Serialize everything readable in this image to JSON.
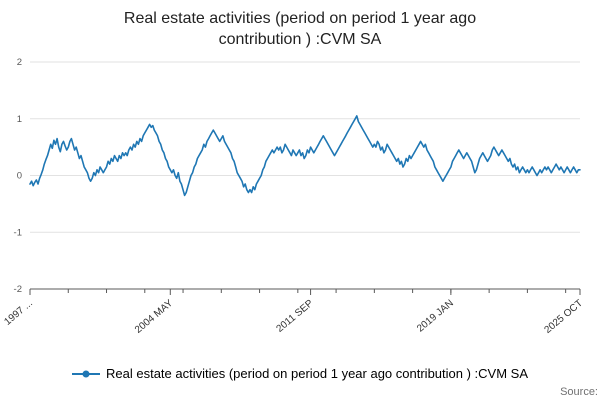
{
  "source": {
    "label": "Source:"
  },
  "legend": {
    "label": "Real estate activities (period on period 1 year ago contribution ) :CVM SA"
  },
  "chart_data": {
    "type": "line",
    "title": "Real estate activities (period on period 1 year ago contribution ) :CVM SA",
    "xlabel": "",
    "ylabel": "",
    "ylim": [
      -2,
      2
    ],
    "y_ticks": [
      -2,
      -1,
      0,
      1,
      2
    ],
    "grid": true,
    "legend_position": "bottom",
    "x_start": "1997 JAN",
    "x_end": "2025 OCT",
    "x_tick_labels": [
      {
        "index": 0,
        "label": "1997 ..."
      },
      {
        "index": 88,
        "label": "2004 MAY"
      },
      {
        "index": 176,
        "label": "2011 SEP"
      },
      {
        "index": 264,
        "label": "2019 JAN"
      },
      {
        "index": 345,
        "label": "2025 OCT"
      }
    ],
    "series": [
      {
        "name": "Real estate activities (period on period 1 year ago contribution ) :CVM SA",
        "color": "#1f77b4",
        "values": [
          -0.15,
          -0.1,
          -0.18,
          -0.12,
          -0.08,
          -0.15,
          -0.05,
          0.02,
          0.1,
          0.2,
          0.28,
          0.35,
          0.45,
          0.55,
          0.48,
          0.62,
          0.55,
          0.65,
          0.5,
          0.42,
          0.55,
          0.6,
          0.52,
          0.45,
          0.5,
          0.6,
          0.65,
          0.55,
          0.45,
          0.5,
          0.4,
          0.3,
          0.35,
          0.25,
          0.15,
          0.1,
          0.05,
          -0.05,
          -0.1,
          -0.05,
          0.05,
          0.0,
          0.1,
          0.05,
          0.15,
          0.1,
          0.05,
          0.1,
          0.15,
          0.25,
          0.2,
          0.3,
          0.25,
          0.35,
          0.3,
          0.25,
          0.35,
          0.3,
          0.4,
          0.35,
          0.4,
          0.35,
          0.45,
          0.5,
          0.45,
          0.55,
          0.5,
          0.6,
          0.55,
          0.65,
          0.6,
          0.7,
          0.75,
          0.8,
          0.85,
          0.9,
          0.85,
          0.88,
          0.8,
          0.75,
          0.7,
          0.6,
          0.55,
          0.45,
          0.4,
          0.3,
          0.25,
          0.15,
          0.1,
          0.05,
          0.1,
          0.0,
          -0.05,
          0.05,
          -0.1,
          -0.15,
          -0.25,
          -0.35,
          -0.3,
          -0.2,
          -0.1,
          0.0,
          0.05,
          0.15,
          0.2,
          0.3,
          0.35,
          0.4,
          0.45,
          0.55,
          0.5,
          0.6,
          0.65,
          0.7,
          0.75,
          0.8,
          0.75,
          0.7,
          0.65,
          0.6,
          0.65,
          0.7,
          0.6,
          0.55,
          0.5,
          0.45,
          0.4,
          0.3,
          0.25,
          0.15,
          0.05,
          0.0,
          -0.05,
          -0.1,
          -0.2,
          -0.15,
          -0.25,
          -0.3,
          -0.25,
          -0.3,
          -0.2,
          -0.25,
          -0.15,
          -0.1,
          -0.05,
          0.0,
          0.1,
          0.15,
          0.25,
          0.3,
          0.35,
          0.4,
          0.45,
          0.4,
          0.45,
          0.5,
          0.45,
          0.5,
          0.4,
          0.45,
          0.55,
          0.5,
          0.45,
          0.4,
          0.35,
          0.45,
          0.4,
          0.35,
          0.4,
          0.45,
          0.35,
          0.4,
          0.3,
          0.35,
          0.45,
          0.4,
          0.5,
          0.45,
          0.4,
          0.45,
          0.5,
          0.55,
          0.6,
          0.65,
          0.7,
          0.65,
          0.6,
          0.55,
          0.5,
          0.45,
          0.4,
          0.35,
          0.4,
          0.45,
          0.5,
          0.55,
          0.6,
          0.65,
          0.7,
          0.75,
          0.8,
          0.85,
          0.9,
          0.95,
          1.0,
          1.05,
          0.95,
          0.9,
          0.85,
          0.8,
          0.75,
          0.7,
          0.65,
          0.6,
          0.55,
          0.5,
          0.55,
          0.5,
          0.6,
          0.55,
          0.45,
          0.5,
          0.4,
          0.45,
          0.55,
          0.5,
          0.45,
          0.4,
          0.35,
          0.3,
          0.25,
          0.3,
          0.2,
          0.25,
          0.15,
          0.2,
          0.3,
          0.25,
          0.35,
          0.3,
          0.35,
          0.4,
          0.45,
          0.5,
          0.55,
          0.6,
          0.55,
          0.5,
          0.55,
          0.45,
          0.4,
          0.35,
          0.3,
          0.25,
          0.15,
          0.1,
          0.05,
          0.0,
          -0.05,
          -0.1,
          -0.05,
          0.0,
          0.05,
          0.1,
          0.15,
          0.25,
          0.3,
          0.35,
          0.4,
          0.45,
          0.4,
          0.35,
          0.3,
          0.35,
          0.4,
          0.35,
          0.3,
          0.25,
          0.15,
          0.05,
          0.1,
          0.2,
          0.3,
          0.35,
          0.4,
          0.35,
          0.3,
          0.25,
          0.3,
          0.35,
          0.45,
          0.5,
          0.45,
          0.4,
          0.35,
          0.4,
          0.45,
          0.4,
          0.35,
          0.3,
          0.25,
          0.3,
          0.2,
          0.15,
          0.2,
          0.1,
          0.15,
          0.05,
          0.1,
          0.15,
          0.1,
          0.05,
          0.1,
          0.05,
          0.1,
          0.15,
          0.1,
          0.05,
          0.0,
          0.05,
          0.1,
          0.05,
          0.1,
          0.15,
          0.1,
          0.15,
          0.1,
          0.05,
          0.1,
          0.15,
          0.2,
          0.15,
          0.1,
          0.15,
          0.1,
          0.05,
          0.1,
          0.15,
          0.1,
          0.05,
          0.1,
          0.15,
          0.1,
          0.05,
          0.1,
          0.1
        ]
      }
    ],
    "axis_color": "#595959",
    "grid_color": "#e2e2e2",
    "tick_label_color": "#595959",
    "x_label_color": "#333333"
  }
}
